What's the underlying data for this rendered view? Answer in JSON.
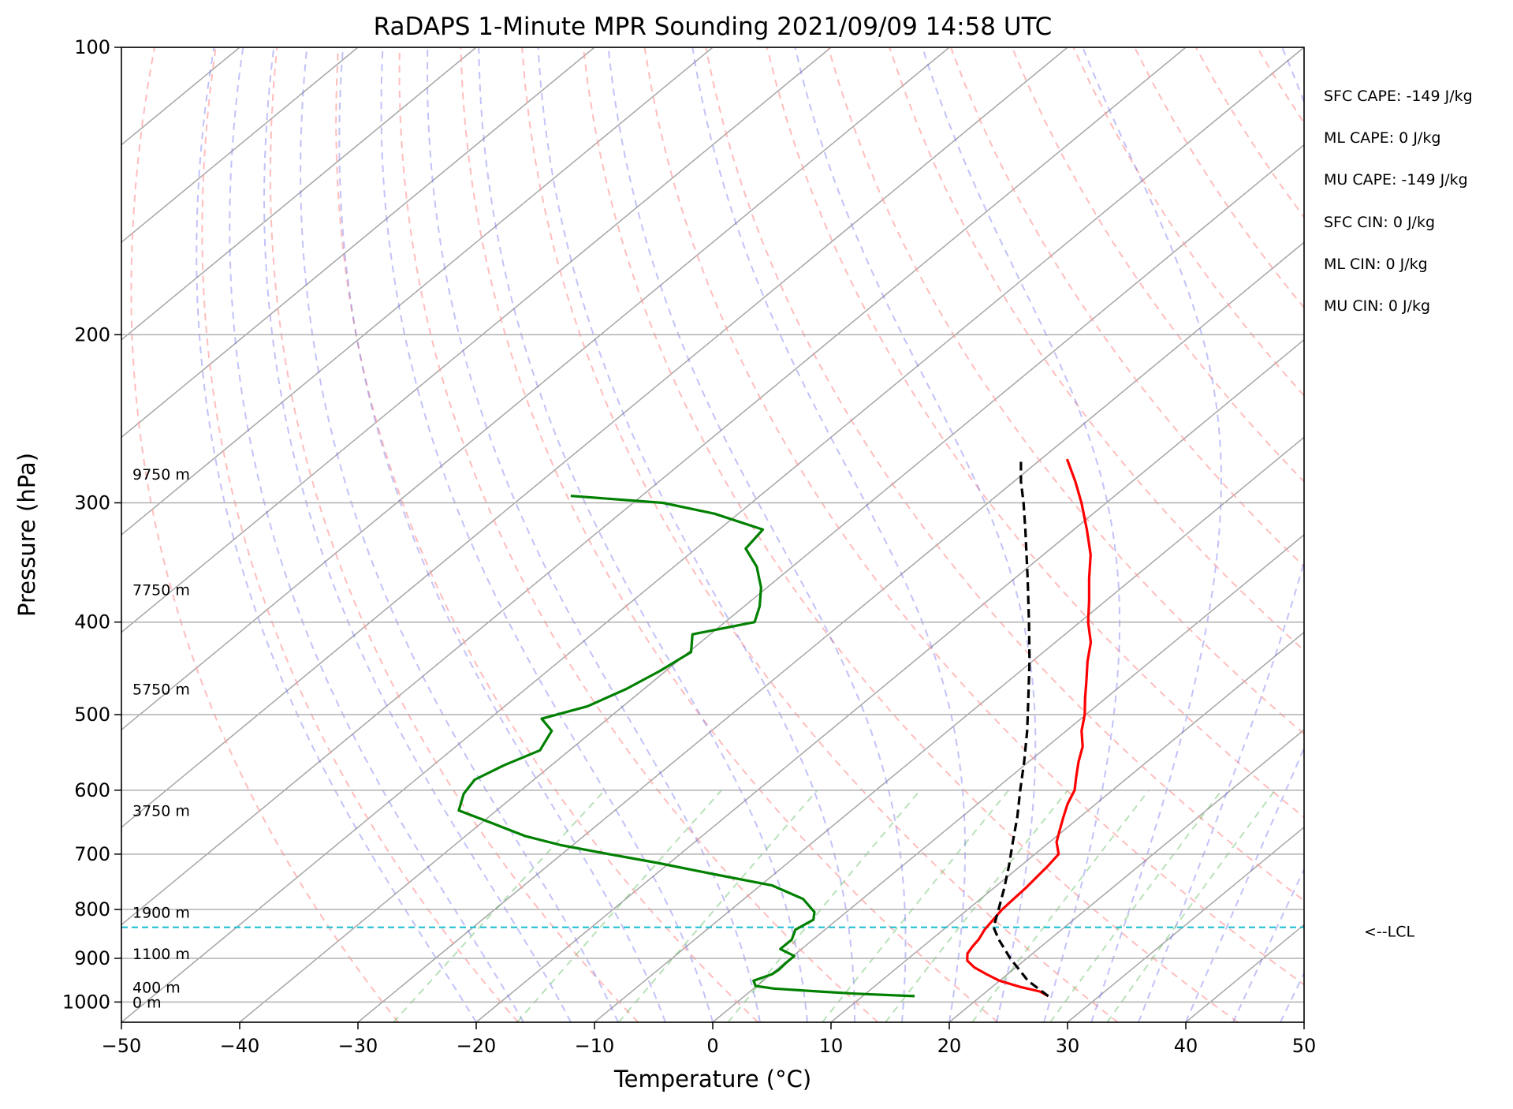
{
  "chart_data": {
    "type": "skew-t sounding",
    "title": "RaDAPS 1-Minute MPR Sounding 2021/09/09 14:58 UTC",
    "xlabel": "Temperature (°C)",
    "ylabel": "Pressure (hPa)",
    "xlim": [
      -50,
      50
    ],
    "ylim": [
      1050,
      100
    ],
    "x_ticks": [
      -50,
      -40,
      -30,
      -20,
      -10,
      0,
      10,
      20,
      30,
      40,
      50
    ],
    "x_tick_labels": [
      "−50",
      "−40",
      "−30",
      "−20",
      "−10",
      "0",
      "10",
      "20",
      "30",
      "40",
      "50"
    ],
    "y_ticks": [
      100,
      200,
      300,
      400,
      500,
      600,
      700,
      800,
      900,
      1000
    ],
    "grid": "horizontal at pressure ticks",
    "height_labels": [
      {
        "p": 1000,
        "text": "0 m"
      },
      {
        "p": 965,
        "text": "400 m"
      },
      {
        "p": 890,
        "text": "1100 m"
      },
      {
        "p": 805,
        "text": "1900 m"
      },
      {
        "p": 630,
        "text": "3750 m"
      },
      {
        "p": 470,
        "text": "5750 m"
      },
      {
        "p": 370,
        "text": "7750 m"
      },
      {
        "p": 280,
        "text": "9750 m"
      }
    ],
    "lcl": {
      "p": 835,
      "label": "<--LCL",
      "color": "#17becf"
    },
    "stats": [
      "SFC CAPE: -149 J/kg",
      "ML CAPE: 0 J/kg",
      "MU CAPE: -149 J/kg",
      "SFC CIN: 0 J/kg",
      "ML CIN: 0 J/kg",
      "MU CIN: 0 J/kg"
    ],
    "series": [
      {
        "role": "temperature",
        "color": "#ff0000",
        "points": [
          [
            986,
            25.7
          ],
          [
            975,
            24.5
          ],
          [
            965,
            22.5
          ],
          [
            950,
            20.0
          ],
          [
            935,
            18.2
          ],
          [
            920,
            16.5
          ],
          [
            905,
            15.2
          ],
          [
            890,
            14.5
          ],
          [
            875,
            14.2
          ],
          [
            860,
            14.0
          ],
          [
            840,
            13.5
          ],
          [
            820,
            13.2
          ],
          [
            800,
            12.9
          ],
          [
            780,
            12.8
          ],
          [
            760,
            12.7
          ],
          [
            740,
            12.5
          ],
          [
            720,
            12.3
          ],
          [
            700,
            12.0
          ],
          [
            680,
            10.6
          ],
          [
            660,
            9.6
          ],
          [
            640,
            8.6
          ],
          [
            620,
            7.6
          ],
          [
            600,
            6.8
          ],
          [
            580,
            5.5
          ],
          [
            560,
            4.2
          ],
          [
            540,
            3.0
          ],
          [
            520,
            1.3
          ],
          [
            500,
            -0.1
          ],
          [
            480,
            -1.8
          ],
          [
            460,
            -3.5
          ],
          [
            440,
            -5.3
          ],
          [
            420,
            -7.0
          ],
          [
            400,
            -9.3
          ],
          [
            380,
            -11.4
          ],
          [
            360,
            -13.7
          ],
          [
            340,
            -16.0
          ],
          [
            320,
            -18.9
          ],
          [
            300,
            -22.1
          ],
          [
            285,
            -24.8
          ],
          [
            270,
            -27.8
          ]
        ]
      },
      {
        "role": "parcel",
        "color": "#000000",
        "points": [
          [
            986,
            25.7
          ],
          [
            950,
            22.4
          ],
          [
            900,
            18.6
          ],
          [
            860,
            15.7
          ],
          [
            835,
            14.0
          ],
          [
            800,
            12.6
          ],
          [
            760,
            10.9
          ],
          [
            720,
            9.0
          ],
          [
            680,
            6.9
          ],
          [
            640,
            4.7
          ],
          [
            600,
            2.2
          ],
          [
            560,
            -0.4
          ],
          [
            520,
            -3.3
          ],
          [
            480,
            -6.6
          ],
          [
            440,
            -10.2
          ],
          [
            400,
            -14.3
          ],
          [
            360,
            -18.9
          ],
          [
            320,
            -24.1
          ],
          [
            300,
            -27.0
          ],
          [
            285,
            -29.4
          ],
          [
            270,
            -31.7
          ]
        ]
      },
      {
        "role": "dewpoint",
        "color": "#008000",
        "points": [
          [
            986,
            14.4
          ],
          [
            980,
            9.0
          ],
          [
            975,
            5.8
          ],
          [
            968,
            1.7
          ],
          [
            962,
            -0.1
          ],
          [
            950,
            -0.8
          ],
          [
            935,
            0.1
          ],
          [
            925,
            0.2
          ],
          [
            910,
            0.1
          ],
          [
            895,
            0.1
          ],
          [
            880,
            -1.8
          ],
          [
            860,
            -1.8
          ],
          [
            840,
            -2.5
          ],
          [
            820,
            -2.0
          ],
          [
            805,
            -2.7
          ],
          [
            780,
            -5.0
          ],
          [
            755,
            -9.0
          ],
          [
            735,
            -15.0
          ],
          [
            715,
            -21.0
          ],
          [
            700,
            -26.0
          ],
          [
            685,
            -31.0
          ],
          [
            670,
            -35.0
          ],
          [
            650,
            -39.0
          ],
          [
            630,
            -43.2
          ],
          [
            605,
            -44.5
          ],
          [
            585,
            -45.0
          ],
          [
            565,
            -44.0
          ],
          [
            545,
            -42.5
          ],
          [
            520,
            -43.5
          ],
          [
            505,
            -45.6
          ],
          [
            490,
            -43.0
          ],
          [
            470,
            -41.5
          ],
          [
            450,
            -40.5
          ],
          [
            430,
            -39.8
          ],
          [
            412,
            -41.5
          ],
          [
            400,
            -37.5
          ],
          [
            385,
            -38.7
          ],
          [
            368,
            -40.5
          ],
          [
            350,
            -43.0
          ],
          [
            335,
            -45.8
          ],
          [
            320,
            -46.3
          ],
          [
            308,
            -52.0
          ],
          [
            300,
            -57.5
          ],
          [
            295,
            -66.0
          ]
        ]
      }
    ]
  }
}
